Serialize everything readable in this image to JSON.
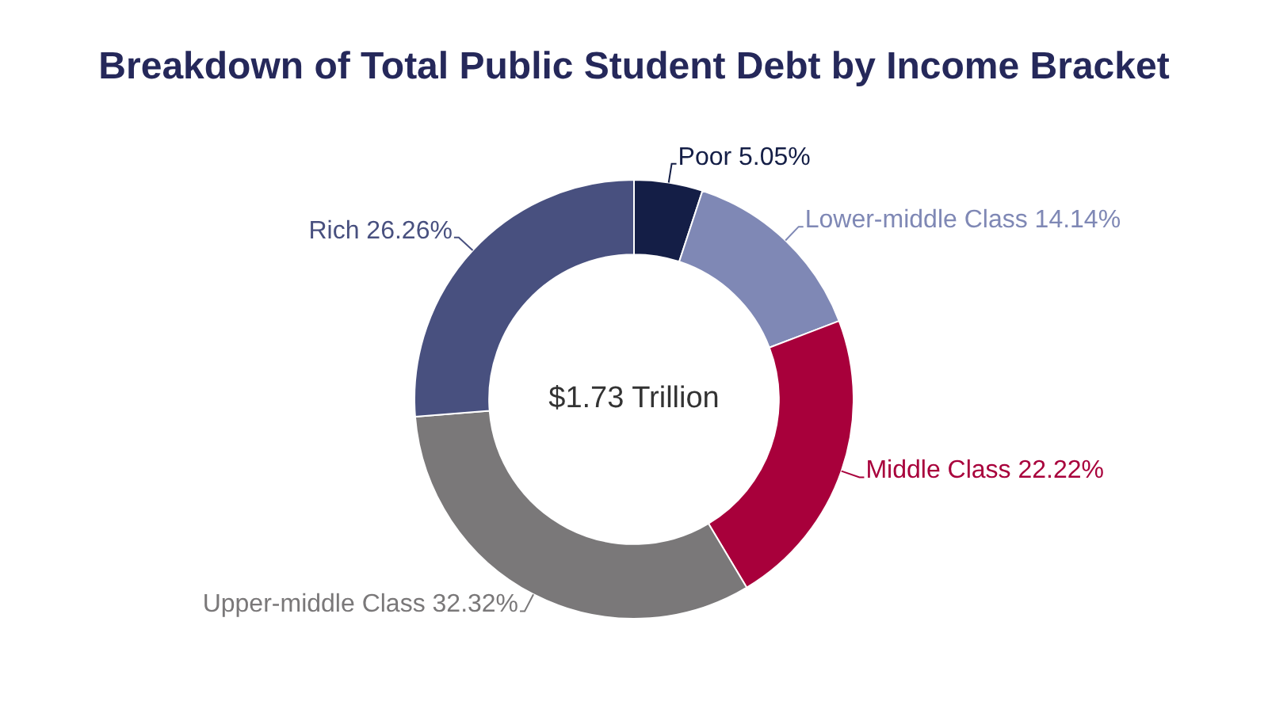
{
  "chart_data": {
    "type": "donut",
    "title": "Breakdown of Total Public Student Debt by Income Bracket",
    "categories": [
      "Poor",
      "Lower-middle Class",
      "Middle Class",
      "Upper-middle Class",
      "Rich"
    ],
    "values": [
      5.05,
      14.14,
      22.22,
      32.32,
      26.26
    ],
    "colors": [
      "#141e46",
      "#7f88b5",
      "#a8003b",
      "#7a7879",
      "#48507f"
    ],
    "value_labels": [
      "5.05%",
      "14.14%",
      "22.22%",
      "32.32%",
      "26.26%"
    ],
    "annotations": [
      "$1.73 Trillion"
    ]
  }
}
